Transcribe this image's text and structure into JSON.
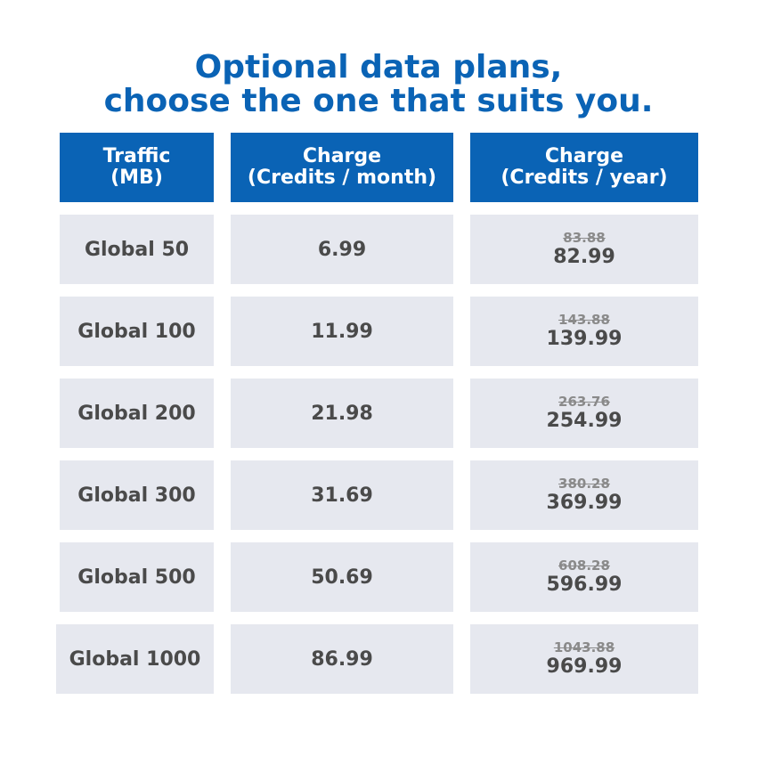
{
  "title": {
    "line1": "Optional data plans,",
    "line2": "choose the one that suits you."
  },
  "table": {
    "headers": [
      {
        "line1": "Traffic",
        "line2": "(MB)"
      },
      {
        "line1": "Charge",
        "line2": "(Credits / month)"
      },
      {
        "line1": "Charge",
        "line2": "(Credits / year)"
      }
    ],
    "rows": [
      {
        "plan": "Global 50",
        "month": "6.99",
        "year_old": "83.88",
        "year_new": "82.99"
      },
      {
        "plan": "Global 100",
        "month": "11.99",
        "year_old": "143.88",
        "year_new": "139.99"
      },
      {
        "plan": "Global 200",
        "month": "21.98",
        "year_old": "263.76",
        "year_new": "254.99"
      },
      {
        "plan": "Global 300",
        "month": "31.69",
        "year_old": "380.28",
        "year_new": "369.99"
      },
      {
        "plan": "Global 500",
        "month": "50.69",
        "year_old": "608.28",
        "year_new": "596.99"
      },
      {
        "plan": "Global 1000",
        "month": "86.99",
        "year_old": "1043.88",
        "year_new": "969.99"
      }
    ]
  },
  "colors": {
    "brand_blue": "#0a63b5",
    "cell_background": "#e6e8ef",
    "text_dark": "#4a4a4a",
    "text_strikethrough": "#8a8a8a"
  }
}
